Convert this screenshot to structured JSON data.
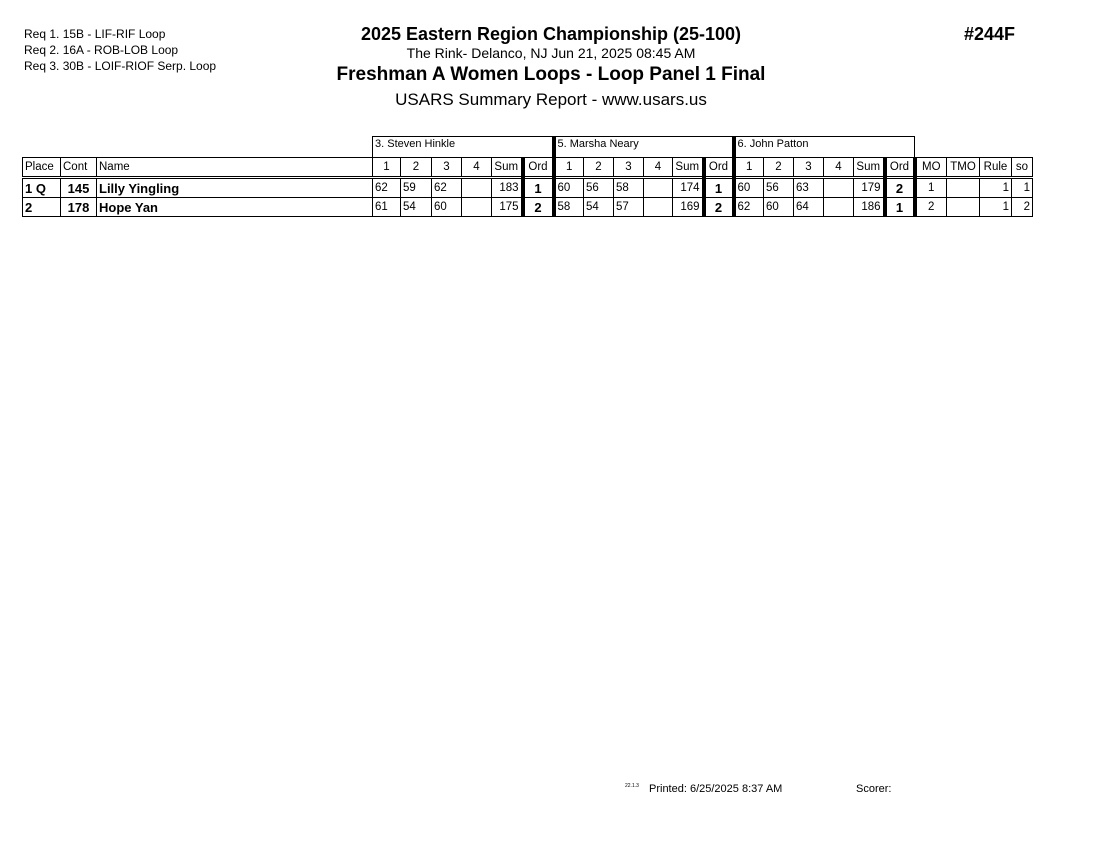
{
  "requirements": [
    "Req  1.  15B - LIF-RIF Loop",
    "Req  2.  16A - ROB-LOB Loop",
    "Req  3.  30B - LOIF-RIOF Serp. Loop"
  ],
  "header": {
    "title": "2025 Eastern Region Championship (25-100)",
    "venue": "The Rink- Delanco, NJ  Jun 21, 2025  08:45 AM",
    "event": "Freshman A Women Loops - Loop Panel 1 Final",
    "report": "USARS Summary Report - www.usars.us",
    "event_number": "#244F"
  },
  "judges": [
    "3.  Steven Hinkle",
    "5.  Marsha Neary",
    "6.  John Patton"
  ],
  "columns": {
    "place": "Place",
    "cont": "Cont",
    "name": "Name",
    "marks": [
      "1",
      "2",
      "3",
      "4"
    ],
    "sum": "Sum",
    "ord": "Ord",
    "mo": "MO",
    "tmo": "TMO",
    "rule": "Rule",
    "so": "so"
  },
  "rows": [
    {
      "place": "1 Q",
      "cont": "145",
      "name": "Lilly Yingling",
      "judges": [
        {
          "marks": [
            "62",
            "59",
            "62",
            ""
          ],
          "sum": "183",
          "ord": "1"
        },
        {
          "marks": [
            "60",
            "56",
            "58",
            ""
          ],
          "sum": "174",
          "ord": "1"
        },
        {
          "marks": [
            "60",
            "56",
            "63",
            ""
          ],
          "sum": "179",
          "ord": "2"
        }
      ],
      "mo": "1",
      "tmo": "",
      "rule": "1",
      "so": "1"
    },
    {
      "place": "2",
      "cont": "178",
      "name": "Hope Yan",
      "judges": [
        {
          "marks": [
            "61",
            "54",
            "60",
            ""
          ],
          "sum": "175",
          "ord": "2"
        },
        {
          "marks": [
            "58",
            "54",
            "57",
            ""
          ],
          "sum": "169",
          "ord": "2"
        },
        {
          "marks": [
            "62",
            "60",
            "64",
            ""
          ],
          "sum": "186",
          "ord": "1"
        }
      ],
      "mo": "2",
      "tmo": "",
      "rule": "1",
      "so": "2"
    }
  ],
  "footer": {
    "version": "22.1.3",
    "printed": "Printed:  6/25/2025  8:37 AM",
    "scorer": "Scorer:"
  }
}
